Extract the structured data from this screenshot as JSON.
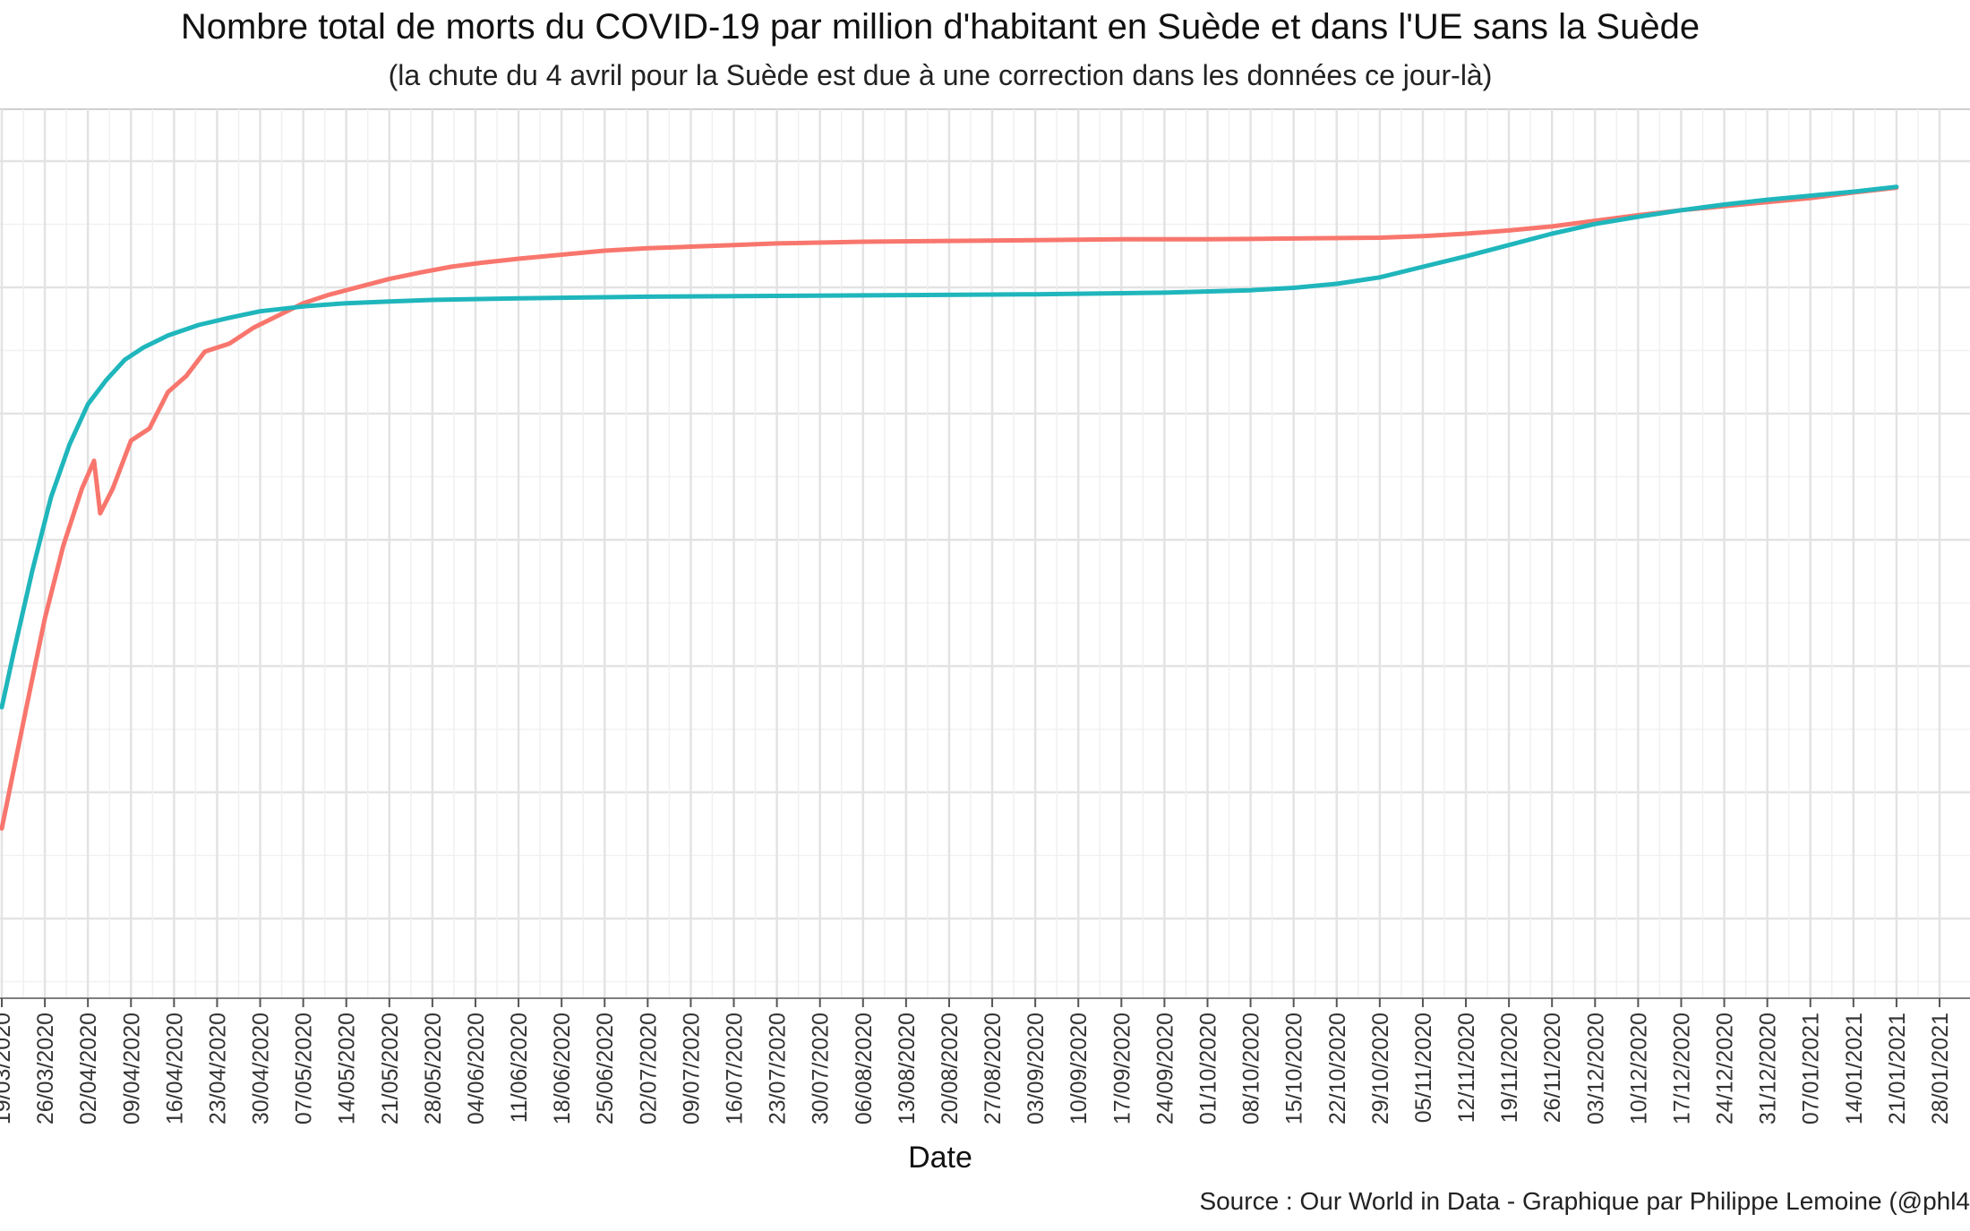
{
  "chart_data": {
    "type": "line",
    "title": "Nombre total de morts du COVID-19 par million d'habitant en Suède et dans l'UE sans la Suède",
    "subtitle": "(la chute du 4 avril pour la Suède est due à une correction dans les données ce jour-là)",
    "xlabel": "Date",
    "ylabel": "",
    "source": "Source : Our World in Data - Graphique par Philippe Lemoine (@phl4",
    "grid": true,
    "legend": "none",
    "x_ticks": [
      "19/03/2020",
      "26/03/2020",
      "02/04/2020",
      "09/04/2020",
      "16/04/2020",
      "23/04/2020",
      "30/04/2020",
      "07/05/2020",
      "14/05/2020",
      "21/05/2020",
      "28/05/2020",
      "04/06/2020",
      "11/06/2020",
      "18/06/2020",
      "25/06/2020",
      "02/07/2020",
      "09/07/2020",
      "16/07/2020",
      "23/07/2020",
      "30/07/2020",
      "06/08/2020",
      "13/08/2020",
      "20/08/2020",
      "27/08/2020",
      "03/09/2020",
      "10/09/2020",
      "17/09/2020",
      "24/09/2020",
      "01/10/2020",
      "08/10/2020",
      "15/10/2020",
      "22/10/2020",
      "29/10/2020",
      "05/11/2020",
      "12/11/2020",
      "19/11/2020",
      "26/11/2020",
      "03/12/2020",
      "10/12/2020",
      "17/12/2020",
      "24/12/2020",
      "31/12/2020",
      "07/01/2021",
      "14/01/2021",
      "21/01/2021",
      "28/01/2021"
    ],
    "y_gridlines": 7,
    "series": [
      {
        "color": "#f8766d",
        "points": [
          [
            "19/03/2020",
            0.21
          ],
          [
            "23/03/2020",
            0.36
          ],
          [
            "26/03/2020",
            0.47
          ],
          [
            "29/03/2020",
            0.56
          ],
          [
            "01/04/2020",
            0.63
          ],
          [
            "03/04/2020",
            0.665
          ],
          [
            "04/04/2020",
            0.6
          ],
          [
            "06/04/2020",
            0.63
          ],
          [
            "09/04/2020",
            0.69
          ],
          [
            "12/04/2020",
            0.705
          ],
          [
            "15/04/2020",
            0.75
          ],
          [
            "18/04/2020",
            0.77
          ],
          [
            "21/04/2020",
            0.8
          ],
          [
            "25/04/2020",
            0.81
          ],
          [
            "29/04/2020",
            0.83
          ],
          [
            "03/05/2020",
            0.845
          ],
          [
            "07/05/2020",
            0.86
          ],
          [
            "11/05/2020",
            0.87
          ],
          [
            "16/05/2020",
            0.88
          ],
          [
            "21/05/2020",
            0.89
          ],
          [
            "26/05/2020",
            0.898
          ],
          [
            "31/05/2020",
            0.905
          ],
          [
            "05/06/2020",
            0.91
          ],
          [
            "11/06/2020",
            0.915
          ],
          [
            "18/06/2020",
            0.92
          ],
          [
            "25/06/2020",
            0.925
          ],
          [
            "02/07/2020",
            0.928
          ],
          [
            "09/07/2020",
            0.93
          ],
          [
            "16/07/2020",
            0.932
          ],
          [
            "23/07/2020",
            0.934
          ],
          [
            "06/08/2020",
            0.936
          ],
          [
            "20/08/2020",
            0.937
          ],
          [
            "03/09/2020",
            0.938
          ],
          [
            "17/09/2020",
            0.939
          ],
          [
            "01/10/2020",
            0.939
          ],
          [
            "15/10/2020",
            0.94
          ],
          [
            "29/10/2020",
            0.941
          ],
          [
            "05/11/2020",
            0.943
          ],
          [
            "12/11/2020",
            0.946
          ],
          [
            "19/11/2020",
            0.95
          ],
          [
            "26/11/2020",
            0.955
          ],
          [
            "03/12/2020",
            0.962
          ],
          [
            "10/12/2020",
            0.969
          ],
          [
            "17/12/2020",
            0.975
          ],
          [
            "24/12/2020",
            0.98
          ],
          [
            "31/12/2020",
            0.985
          ],
          [
            "07/01/2021",
            0.99
          ],
          [
            "14/01/2021",
            0.997
          ],
          [
            "21/01/2021",
            1.003
          ]
        ]
      },
      {
        "color": "#1fb6bc",
        "points": [
          [
            "19/03/2020",
            0.36
          ],
          [
            "21/03/2020",
            0.43
          ],
          [
            "24/03/2020",
            0.53
          ],
          [
            "27/03/2020",
            0.62
          ],
          [
            "30/03/2020",
            0.685
          ],
          [
            "02/04/2020",
            0.735
          ],
          [
            "05/04/2020",
            0.765
          ],
          [
            "08/04/2020",
            0.79
          ],
          [
            "11/04/2020",
            0.805
          ],
          [
            "15/04/2020",
            0.82
          ],
          [
            "20/04/2020",
            0.833
          ],
          [
            "25/04/2020",
            0.842
          ],
          [
            "30/04/2020",
            0.85
          ],
          [
            "07/05/2020",
            0.856
          ],
          [
            "14/05/2020",
            0.86
          ],
          [
            "21/05/2020",
            0.862
          ],
          [
            "28/05/2020",
            0.864
          ],
          [
            "11/06/2020",
            0.866
          ],
          [
            "02/07/2020",
            0.868
          ],
          [
            "23/07/2020",
            0.869
          ],
          [
            "13/08/2020",
            0.87
          ],
          [
            "03/09/2020",
            0.871
          ],
          [
            "24/09/2020",
            0.873
          ],
          [
            "08/10/2020",
            0.876
          ],
          [
            "15/10/2020",
            0.879
          ],
          [
            "22/10/2020",
            0.884
          ],
          [
            "29/10/2020",
            0.892
          ],
          [
            "05/11/2020",
            0.905
          ],
          [
            "12/11/2020",
            0.918
          ],
          [
            "19/11/2020",
            0.932
          ],
          [
            "26/11/2020",
            0.946
          ],
          [
            "03/12/2020",
            0.958
          ],
          [
            "10/12/2020",
            0.967
          ],
          [
            "17/12/2020",
            0.975
          ],
          [
            "24/12/2020",
            0.982
          ],
          [
            "31/12/2020",
            0.988
          ],
          [
            "07/01/2021",
            0.993
          ],
          [
            "14/01/2021",
            0.998
          ],
          [
            "21/01/2021",
            1.004
          ]
        ]
      }
    ]
  }
}
